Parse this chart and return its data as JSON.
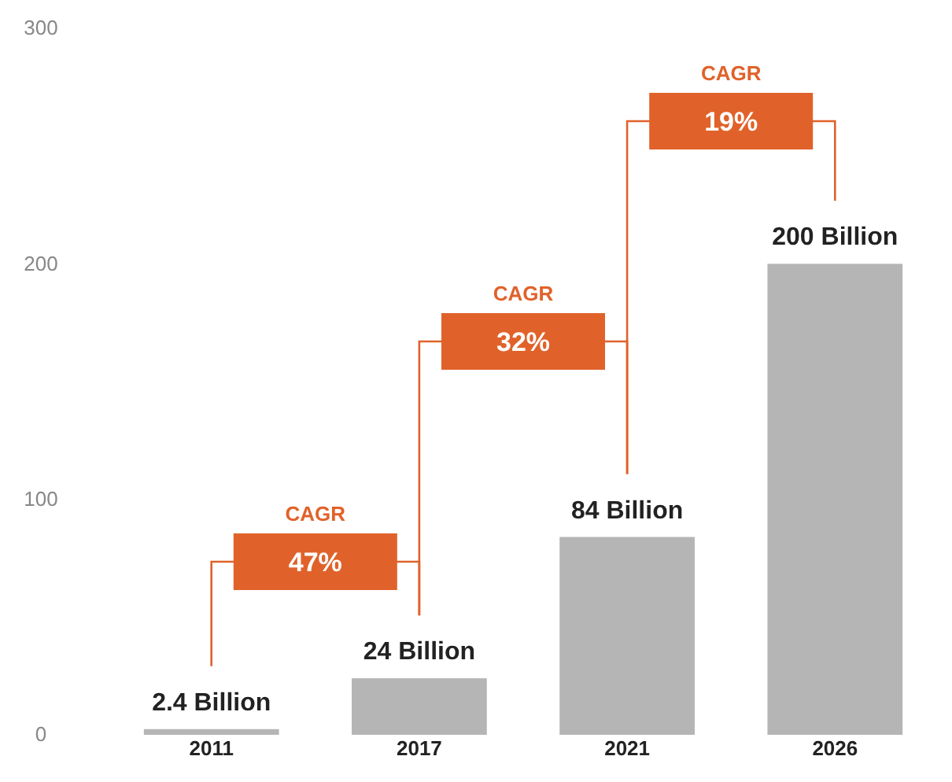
{
  "chart_data": {
    "type": "bar",
    "categories": [
      "2011",
      "2017",
      "2021",
      "2026"
    ],
    "values": [
      2.4,
      24,
      84,
      200
    ],
    "value_labels": [
      "2.4 Billion",
      "24 Billion",
      "84 Billion",
      "200 Billion"
    ],
    "color": "#b5b5b5",
    "ylim": [
      0,
      300
    ],
    "yticks": [
      0,
      100,
      200,
      300
    ],
    "grid": false,
    "annotations": [
      "CAGR",
      "47%",
      "CAGR",
      "32%",
      "CAGR",
      "19%"
    ]
  }
}
